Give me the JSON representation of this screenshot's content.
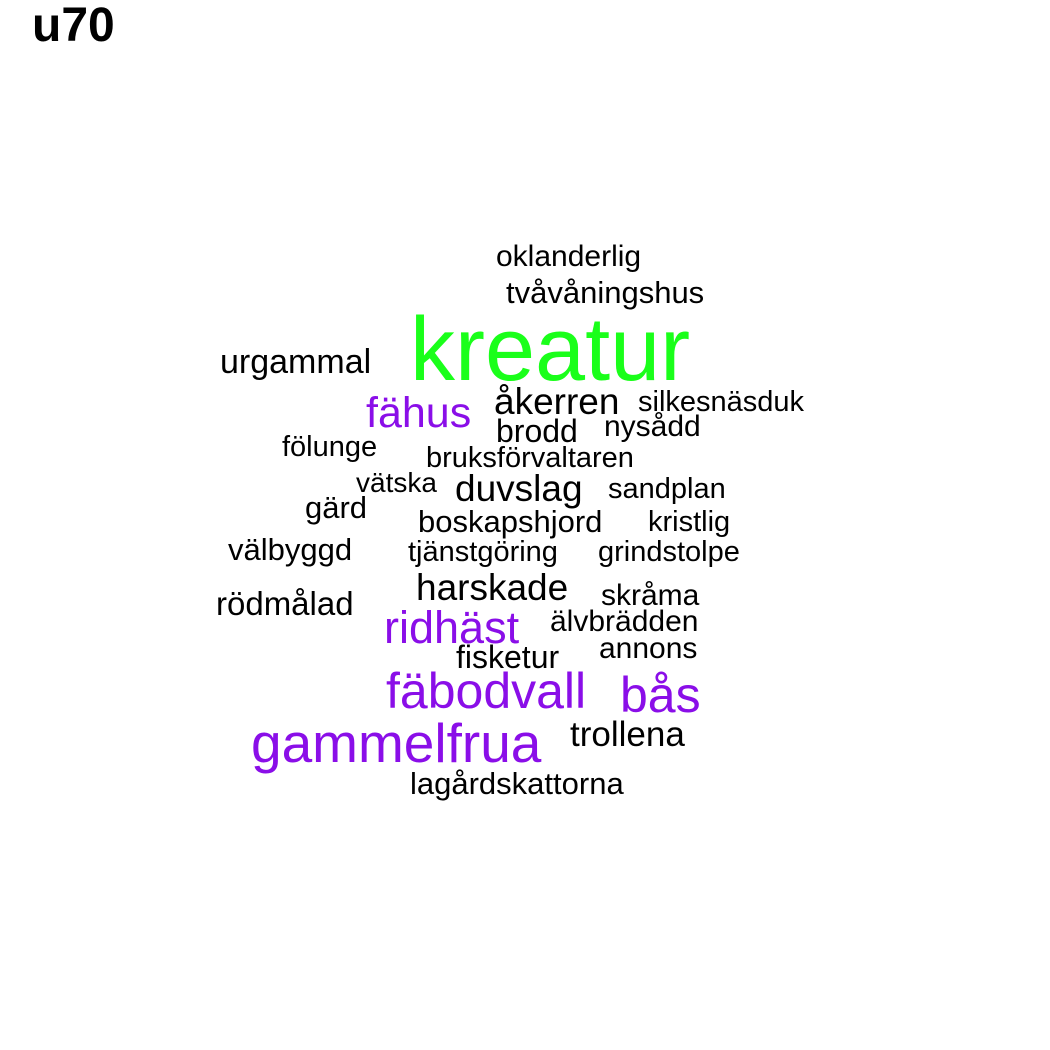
{
  "title": "u70",
  "colors": {
    "green": "#1aff1a",
    "purple": "#8a0ee8",
    "black": "#000000"
  },
  "words": [
    {
      "text": "kreatur",
      "color": "green"
    },
    {
      "text": "oklanderlig",
      "color": "black"
    },
    {
      "text": "tvåvåningshus",
      "color": "black"
    },
    {
      "text": "urgammal",
      "color": "black"
    },
    {
      "text": "fähus",
      "color": "purple"
    },
    {
      "text": "åkerren",
      "color": "black"
    },
    {
      "text": "silkesnäsduk",
      "color": "black"
    },
    {
      "text": "brodd",
      "color": "black"
    },
    {
      "text": "nysådd",
      "color": "black"
    },
    {
      "text": "fölunge",
      "color": "black"
    },
    {
      "text": "bruksförvaltaren",
      "color": "black"
    },
    {
      "text": "vätska",
      "color": "black"
    },
    {
      "text": "duvslag",
      "color": "black"
    },
    {
      "text": "sandplan",
      "color": "black"
    },
    {
      "text": "gärd",
      "color": "black"
    },
    {
      "text": "boskapshjord",
      "color": "black"
    },
    {
      "text": "kristlig",
      "color": "black"
    },
    {
      "text": "välbyggd",
      "color": "black"
    },
    {
      "text": "tjänstgöring",
      "color": "black"
    },
    {
      "text": "grindstolpe",
      "color": "black"
    },
    {
      "text": "harskade",
      "color": "black"
    },
    {
      "text": "skråma",
      "color": "black"
    },
    {
      "text": "rödmålad",
      "color": "black"
    },
    {
      "text": "ridhäst",
      "color": "purple"
    },
    {
      "text": "älvbrädden",
      "color": "black"
    },
    {
      "text": "fisketur",
      "color": "black"
    },
    {
      "text": "annons",
      "color": "black"
    },
    {
      "text": "fäbodvall",
      "color": "purple"
    },
    {
      "text": "bås",
      "color": "purple"
    },
    {
      "text": "gammelfrua",
      "color": "purple"
    },
    {
      "text": "trollena",
      "color": "black"
    },
    {
      "text": "lagårdskattorna",
      "color": "black"
    }
  ]
}
